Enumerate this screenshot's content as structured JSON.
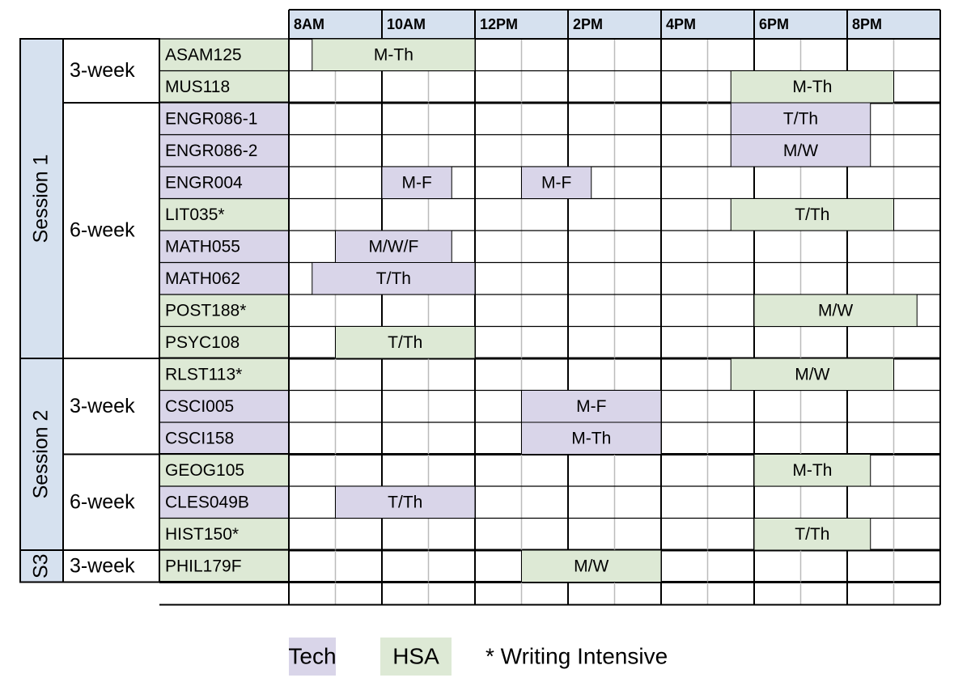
{
  "header": {
    "times": [
      {
        "value": 8,
        "label": "8AM"
      },
      {
        "value": 10,
        "label": "10AM"
      },
      {
        "value": 12,
        "label": "12PM"
      },
      {
        "value": 14,
        "label": "2PM"
      },
      {
        "value": 16,
        "label": "4PM"
      },
      {
        "value": 18,
        "label": "6PM"
      },
      {
        "value": 20,
        "label": "8PM"
      }
    ]
  },
  "sessions": [
    {
      "label": "Session 1",
      "groups": [
        {
          "label": "3-week",
          "courses": [
            {
              "code": "ASAM125",
              "category": "HSA",
              "blocks": [
                {
                  "days": "M-Th",
                  "start": 8.5,
                  "end": 12
                }
              ]
            },
            {
              "code": "MUS118",
              "category": "HSA",
              "blocks": [
                {
                  "days": "M-Th",
                  "start": 17.5,
                  "end": 21
                }
              ]
            }
          ]
        },
        {
          "label": "6-week",
          "courses": [
            {
              "code": "ENGR086-1",
              "category": "Tech",
              "blocks": [
                {
                  "days": "T/Th",
                  "start": 17.5,
                  "end": 20.5
                }
              ]
            },
            {
              "code": "ENGR086-2",
              "category": "Tech",
              "blocks": [
                {
                  "days": "M/W",
                  "start": 17.5,
                  "end": 20.5
                }
              ]
            },
            {
              "code": "ENGR004",
              "category": "Tech",
              "blocks": [
                {
                  "days": "M-F",
                  "start": 10,
                  "end": 11.5
                },
                {
                  "days": "M-F",
                  "start": 13,
                  "end": 14.5
                }
              ]
            },
            {
              "code": "LIT035*",
              "category": "HSA",
              "blocks": [
                {
                  "days": "T/Th",
                  "start": 17.5,
                  "end": 21
                }
              ]
            },
            {
              "code": "MATH055",
              "category": "Tech",
              "blocks": [
                {
                  "days": "M/W/F",
                  "start": 9,
                  "end": 11.5
                }
              ]
            },
            {
              "code": "MATH062",
              "category": "Tech",
              "blocks": [
                {
                  "days": "T/Th",
                  "start": 8.5,
                  "end": 12
                }
              ]
            },
            {
              "code": "POST188*",
              "category": "HSA",
              "blocks": [
                {
                  "days": "M/W",
                  "start": 18,
                  "end": 21.5
                }
              ]
            },
            {
              "code": "PSYC108",
              "category": "HSA",
              "blocks": [
                {
                  "days": "T/Th",
                  "start": 9,
                  "end": 12
                }
              ]
            }
          ]
        }
      ]
    },
    {
      "label": "Session 2",
      "groups": [
        {
          "label": "3-week",
          "courses": [
            {
              "code": "RLST113*",
              "category": "HSA",
              "blocks": [
                {
                  "days": "M/W",
                  "start": 17.5,
                  "end": 21
                }
              ]
            },
            {
              "code": "CSCI005",
              "category": "Tech",
              "blocks": [
                {
                  "days": "M-F",
                  "start": 13,
                  "end": 16
                }
              ]
            },
            {
              "code": "CSCI158",
              "category": "Tech",
              "blocks": [
                {
                  "days": "M-Th",
                  "start": 13,
                  "end": 16
                }
              ]
            }
          ]
        },
        {
          "label": "6-week",
          "courses": [
            {
              "code": "GEOG105",
              "category": "HSA",
              "blocks": [
                {
                  "days": "M-Th",
                  "start": 18,
                  "end": 20.5
                }
              ]
            },
            {
              "code": "CLES049B",
              "category": "Tech",
              "blocks": [
                {
                  "days": "T/Th",
                  "start": 9,
                  "end": 12
                }
              ]
            },
            {
              "code": "HIST150*",
              "category": "HSA",
              "blocks": [
                {
                  "days": "T/Th",
                  "start": 18,
                  "end": 20.5
                }
              ]
            }
          ]
        }
      ]
    },
    {
      "label": "S3",
      "groups": [
        {
          "label": "3-week",
          "courses": [
            {
              "code": "PHIL179F",
              "category": "HSA",
              "blocks": [
                {
                  "days": "M/W",
                  "start": 13,
                  "end": 16
                }
              ]
            }
          ]
        }
      ]
    }
  ],
  "legend": {
    "items": [
      {
        "label": "Tech",
        "color": "#d9d5e9"
      },
      {
        "label": "HSA",
        "color": "#dde9d5"
      }
    ],
    "note": "* Writing Intensive"
  }
}
